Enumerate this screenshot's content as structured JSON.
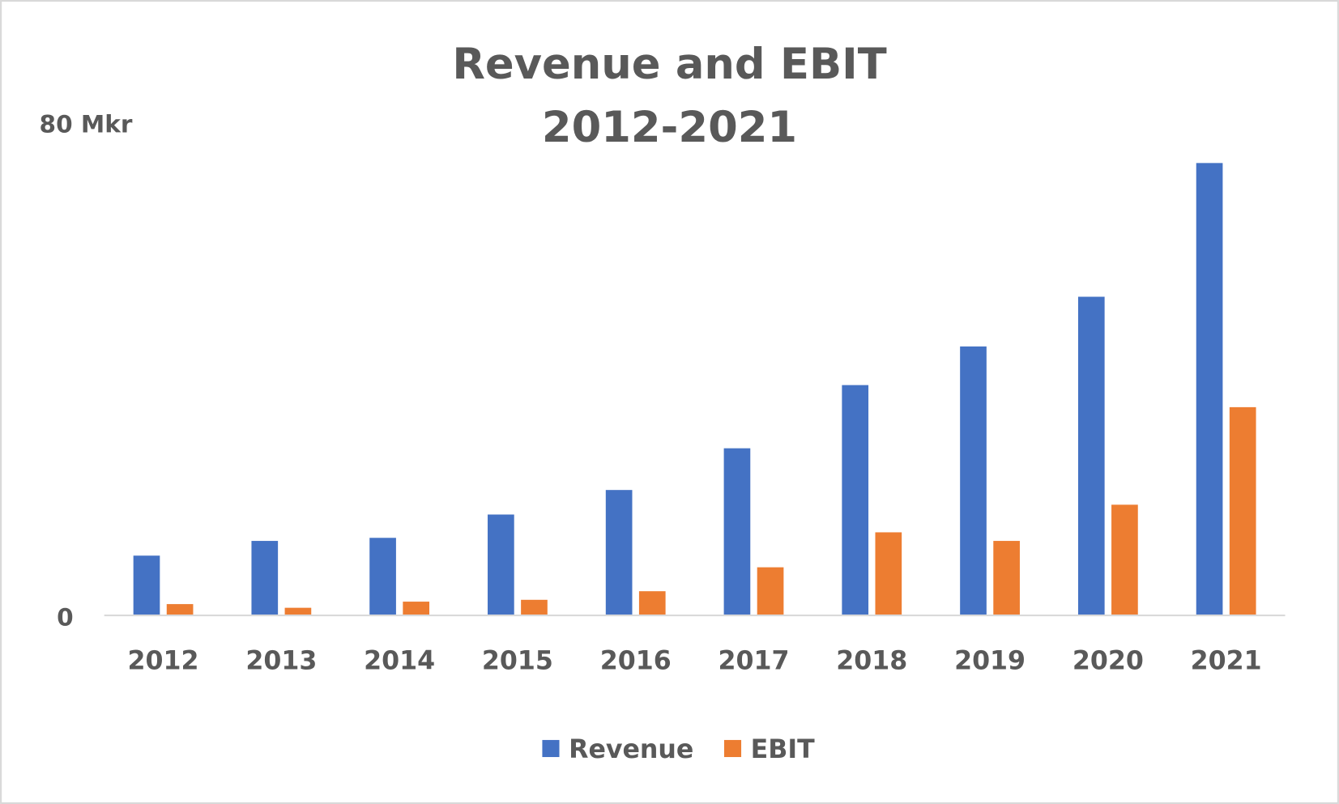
{
  "chart_data": {
    "type": "bar",
    "title": [
      "Revenue and EBIT",
      "2012-2021"
    ],
    "categories": [
      "2012",
      "2013",
      "2014",
      "2015",
      "2016",
      "2017",
      "2018",
      "2019",
      "2020",
      "2021"
    ],
    "series": [
      {
        "name": "Revenue",
        "color": "#4472C4",
        "values": [
          9.6,
          12.0,
          12.5,
          16.3,
          20.3,
          27.1,
          37.4,
          43.7,
          51.8,
          73.6
        ]
      },
      {
        "name": "EBIT",
        "color": "#ED7D31",
        "values": [
          1.7,
          1.1,
          2.1,
          2.4,
          3.8,
          7.7,
          13.4,
          12.0,
          17.9,
          33.8
        ]
      }
    ],
    "ylim": [
      0,
      80
    ],
    "yticks": [
      {
        "value": 0,
        "label": "0"
      },
      {
        "value": 80,
        "label": "80 Mkr"
      }
    ],
    "grid": false,
    "legend_position": "bottom",
    "text_color": "#595959",
    "axis_color": "#D9D9D9"
  }
}
